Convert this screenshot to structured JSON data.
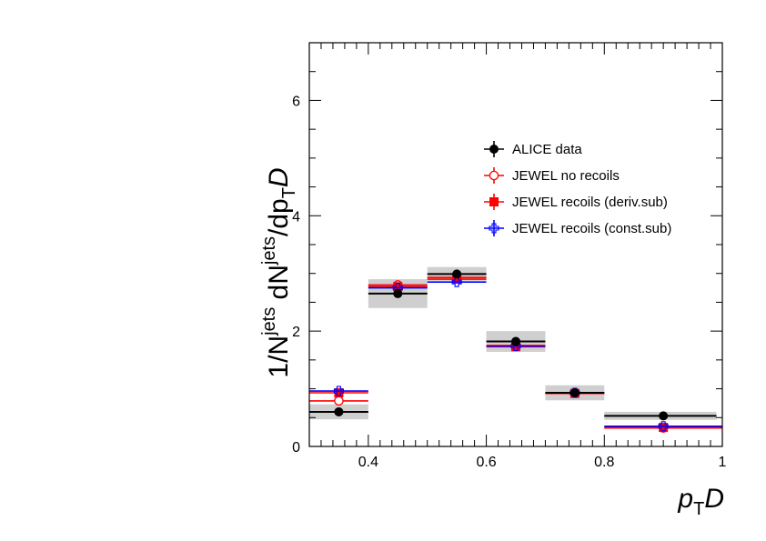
{
  "chart_data": {
    "type": "scatter",
    "xlabel": {
      "main": "p",
      "sub": "T",
      "tail": "D"
    },
    "ylabel": {
      "p1": "1/N",
      "sup1": "jets",
      "p2": " dN",
      "sup2": "jets",
      "p3": "/dp",
      "sub3": "T",
      "p4": "D"
    },
    "xlim": [
      0.3,
      1.0
    ],
    "ylim": [
      0,
      7
    ],
    "xticks": [
      {
        "v": 0.4,
        "label": "0.4"
      },
      {
        "v": 0.6,
        "label": "0.6"
      },
      {
        "v": 0.8,
        "label": "0.8"
      },
      {
        "v": 1.0,
        "label": "1"
      }
    ],
    "yticks": [
      {
        "v": 0,
        "label": "0"
      },
      {
        "v": 2,
        "label": "2"
      },
      {
        "v": 4,
        "label": "4"
      },
      {
        "v": 6,
        "label": "6"
      }
    ],
    "legend_position": "top-right",
    "series": [
      {
        "name": "ALICE data",
        "color": "#000000",
        "marker": "filled-circle",
        "points": [
          {
            "x": 0.35,
            "xlo": 0.3,
            "xhi": 0.4,
            "y": 0.6,
            "sys": 0.13
          },
          {
            "x": 0.45,
            "xlo": 0.4,
            "xhi": 0.5,
            "y": 2.65,
            "sys": 0.25
          },
          {
            "x": 0.55,
            "xlo": 0.5,
            "xhi": 0.6,
            "y": 2.99,
            "sys": 0.12
          },
          {
            "x": 0.65,
            "xlo": 0.6,
            "xhi": 0.7,
            "y": 1.82,
            "sys": 0.18
          },
          {
            "x": 0.75,
            "xlo": 0.7,
            "xhi": 0.8,
            "y": 0.93,
            "sys": 0.13
          },
          {
            "x": 0.9,
            "xlo": 0.8,
            "xhi": 0.99,
            "y": 0.53,
            "sys": 0.07
          }
        ]
      },
      {
        "name": "JEWEL no recoils",
        "color": "#ff0000",
        "marker": "open-circle",
        "points": [
          {
            "x": 0.35,
            "xlo": 0.3,
            "xhi": 0.4,
            "y": 0.79
          },
          {
            "x": 0.45,
            "xlo": 0.4,
            "xhi": 0.5,
            "y": 2.8
          },
          {
            "x": 0.55,
            "xlo": 0.5,
            "xhi": 0.6,
            "y": 2.93
          },
          {
            "x": 0.65,
            "xlo": 0.6,
            "xhi": 0.7,
            "y": 1.75
          },
          {
            "x": 0.75,
            "xlo": 0.7,
            "xhi": 0.8,
            "y": 0.93
          },
          {
            "x": 0.9,
            "xlo": 0.8,
            "xhi": 1.0,
            "y": 0.32
          }
        ]
      },
      {
        "name": "JEWEL recoils (deriv.sub)",
        "color": "#ff0000",
        "marker": "filled-square",
        "points": [
          {
            "x": 0.35,
            "xlo": 0.3,
            "xhi": 0.4,
            "y": 0.93
          },
          {
            "x": 0.45,
            "xlo": 0.4,
            "xhi": 0.5,
            "y": 2.77
          },
          {
            "x": 0.55,
            "xlo": 0.5,
            "xhi": 0.6,
            "y": 2.9
          },
          {
            "x": 0.65,
            "xlo": 0.6,
            "xhi": 0.7,
            "y": 1.73
          },
          {
            "x": 0.75,
            "xlo": 0.7,
            "xhi": 0.8,
            "y": 0.92
          },
          {
            "x": 0.9,
            "xlo": 0.8,
            "xhi": 1.0,
            "y": 0.33
          }
        ]
      },
      {
        "name": "JEWEL recoils (const.sub)",
        "color": "#0000ff",
        "marker": "open-cross",
        "points": [
          {
            "x": 0.35,
            "xlo": 0.3,
            "xhi": 0.4,
            "y": 0.96
          },
          {
            "x": 0.45,
            "xlo": 0.4,
            "xhi": 0.5,
            "y": 2.75
          },
          {
            "x": 0.55,
            "xlo": 0.5,
            "xhi": 0.6,
            "y": 2.85
          },
          {
            "x": 0.65,
            "xlo": 0.6,
            "xhi": 0.7,
            "y": 1.74
          },
          {
            "x": 0.75,
            "xlo": 0.7,
            "xhi": 0.8,
            "y": 0.93
          },
          {
            "x": 0.9,
            "xlo": 0.8,
            "xhi": 1.0,
            "y": 0.35
          }
        ]
      }
    ]
  }
}
